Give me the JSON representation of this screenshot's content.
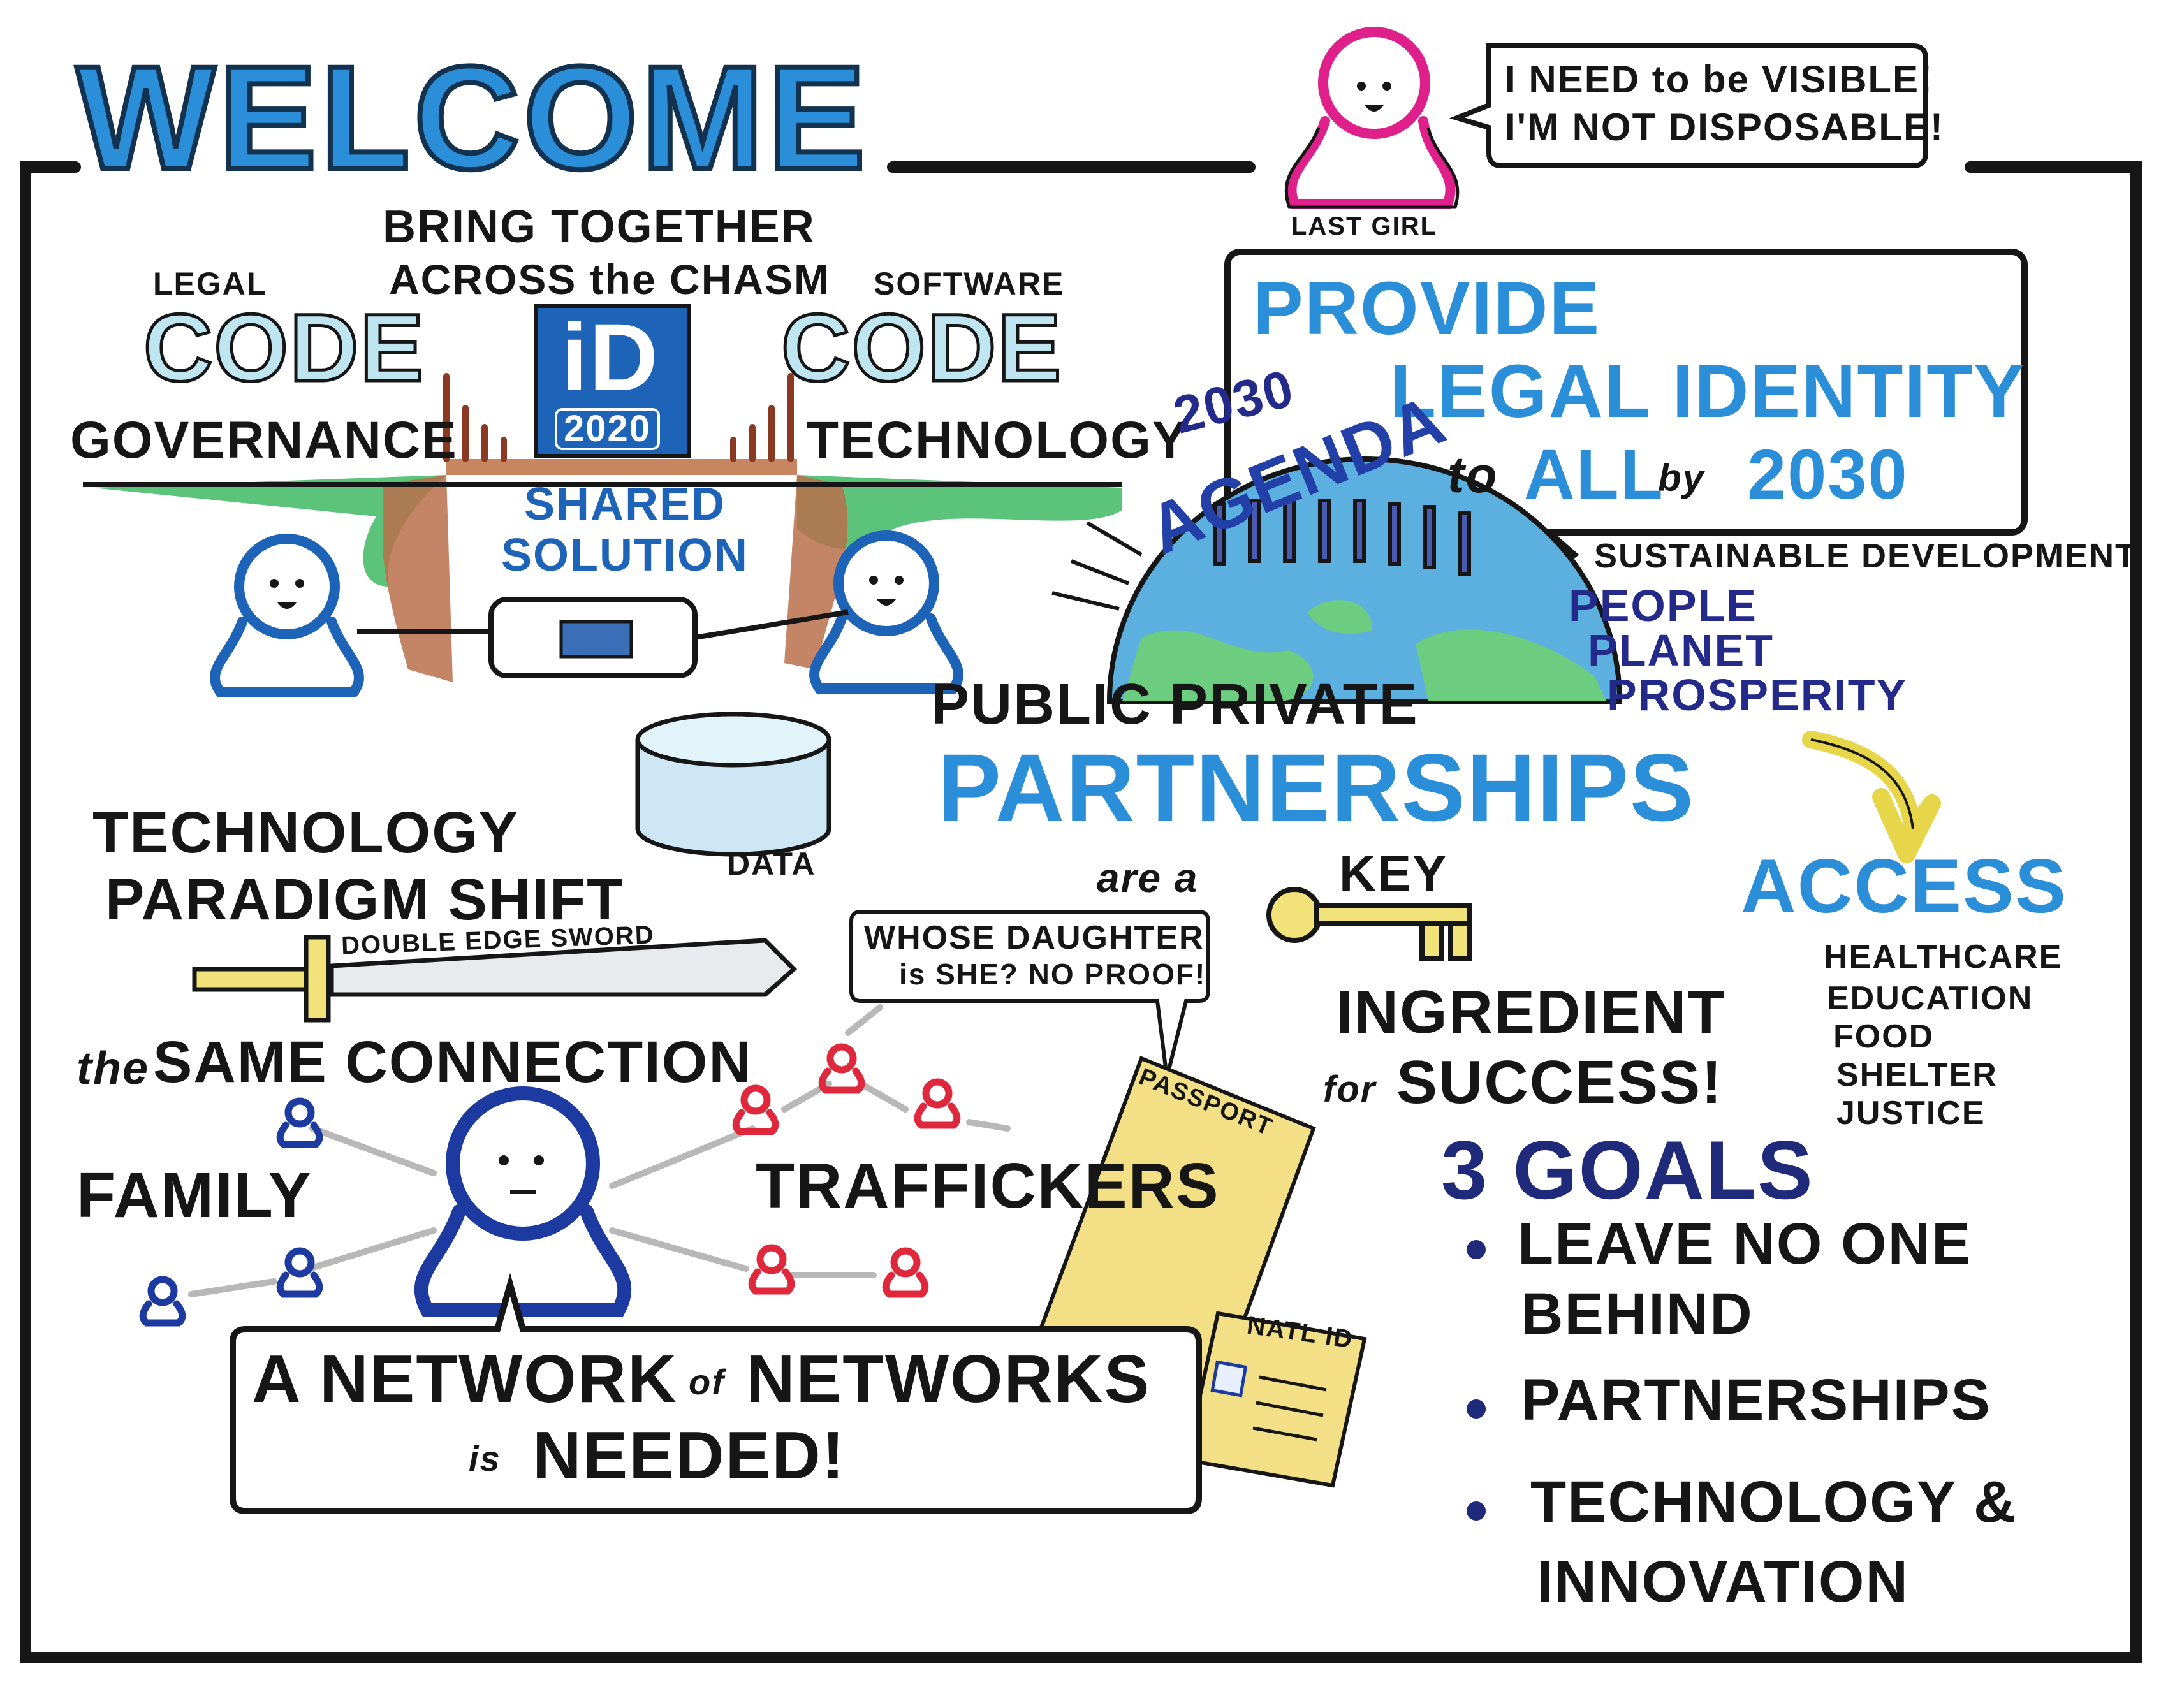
{
  "title": "WELCOME",
  "last_girl": {
    "speech_line1": "I NEED to be VISIBLE!",
    "speech_line2": "I'M NOT DISPOSABLE!",
    "label": "LAST GIRL"
  },
  "bridge": {
    "heading_line1": "BRING TOGETHER",
    "heading_line2": "ACROSS the CHASM",
    "left_small": "LEGAL",
    "left_big": "CODE",
    "left_under": "GOVERNANCE",
    "right_small": "SOFTWARE",
    "right_big": "CODE",
    "right_under": "TECHNOLOGY",
    "logo_letters": "iD",
    "logo_year": "2020",
    "shared_line1": "SHARED",
    "shared_line2": "SOLUTION",
    "data_label": "DATA"
  },
  "provide": {
    "line1": "PROVIDE",
    "line2": "LEGAL IDENTITY",
    "to": "to",
    "all": "ALL",
    "by": "by",
    "year": "2030"
  },
  "agenda": {
    "year": "2030",
    "word": "AGENDA",
    "sustainable": "SUSTAINABLE DEVELOPMENT",
    "pillars": [
      "PEOPLE",
      "PLANET",
      "PROSPERITY"
    ]
  },
  "ppp": {
    "line1": "PUBLIC PRIVATE",
    "line2": "PARTNERSHIPS",
    "are_a": "are a",
    "key": "KEY",
    "ingredient": "INGREDIENT",
    "for": "for",
    "success": "SUCCESS!"
  },
  "access": {
    "title": "ACCESS",
    "items": [
      "HEALTHCARE",
      "EDUCATION",
      "FOOD",
      "SHELTER",
      "JUSTICE"
    ]
  },
  "tech_shift": {
    "line1": "TECHNOLOGY",
    "line2": "PARADIGM SHIFT",
    "sword": "DOUBLE EDGE SWORD",
    "the": "the",
    "same_connection": "SAME CONNECTION"
  },
  "network": {
    "family": "FAMILY",
    "traffickers": "TRAFFICKERS",
    "callout_line1": "WHOSE DAUGHTER",
    "callout_line2": "is SHE? NO PROOF!",
    "passport": "PASSPORT",
    "natl_id": "NATL ID",
    "banner_line1_a": "A NETWORK",
    "banner_of": "of",
    "banner_line1_b": "NETWORKS",
    "banner_is": "is",
    "banner_line2": "NEEDED!"
  },
  "goals": {
    "title": "3 GOALS",
    "items": [
      {
        "line1": "LEAVE NO ONE",
        "line2": "BEHIND"
      },
      {
        "line1": "PARTNERSHIPS",
        "line2": ""
      },
      {
        "line1": "TECHNOLOGY &",
        "line2": "INNOVATION"
      }
    ]
  },
  "colors": {
    "ink": "#161616",
    "blue": "#1d64b8",
    "navy": "#232a8a",
    "pink": "#e0208a",
    "red": "#e0283c",
    "yellow": "#f2e27a",
    "green": "#5cc47a",
    "cliff_brown": "#b8704a"
  }
}
